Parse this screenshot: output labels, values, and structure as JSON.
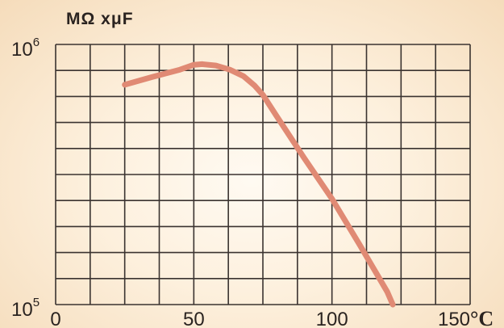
{
  "chart_data": {
    "type": "line",
    "title": "MΩ xμF",
    "xlabel": "",
    "x_unit": "°C",
    "ylabel": "",
    "xlim": [
      0,
      150
    ],
    "ylim": [
      100000,
      1000000
    ],
    "y_scale": "log",
    "grid": true,
    "x_ticks": [
      0,
      50,
      100,
      150
    ],
    "y_ticks": [
      {
        "base": "10",
        "exp": "5",
        "value": 100000
      },
      {
        "base": "10",
        "exp": "6",
        "value": 1000000
      }
    ],
    "series": [
      {
        "color": "#e08a74",
        "points": [
          {
            "x": 25,
            "y": 700000
          },
          {
            "x": 35,
            "y": 750000
          },
          {
            "x": 45,
            "y": 800000
          },
          {
            "x": 50,
            "y": 835000
          },
          {
            "x": 53,
            "y": 840000
          },
          {
            "x": 58,
            "y": 830000
          },
          {
            "x": 63,
            "y": 800000
          },
          {
            "x": 68,
            "y": 755000
          },
          {
            "x": 72,
            "y": 695000
          },
          {
            "x": 75,
            "y": 640000
          },
          {
            "x": 80,
            "y": 530000
          },
          {
            "x": 90,
            "y": 365000
          },
          {
            "x": 100,
            "y": 255000
          },
          {
            "x": 110,
            "y": 170000
          },
          {
            "x": 120,
            "y": 112000
          },
          {
            "x": 122,
            "y": 100000
          }
        ]
      }
    ]
  }
}
